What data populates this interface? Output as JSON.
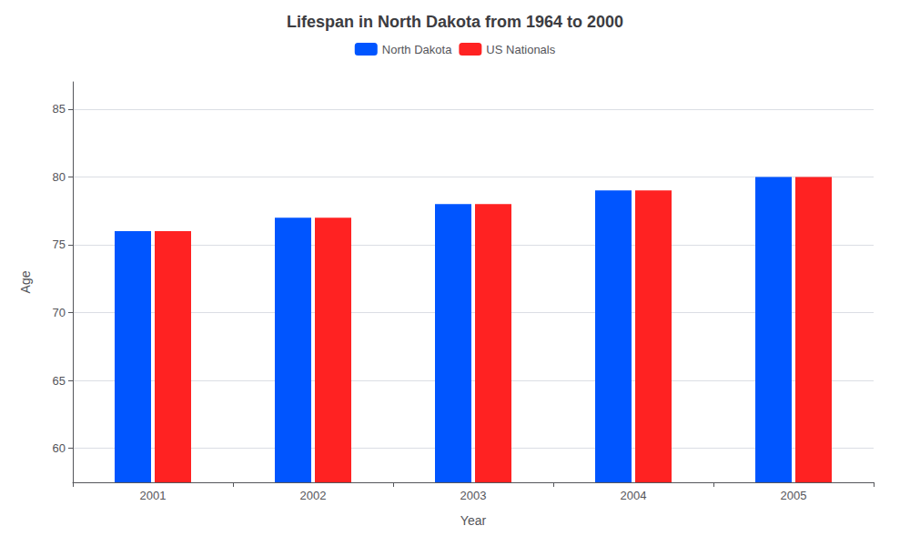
{
  "chart_data": {
    "type": "bar",
    "title": "Lifespan in North Dakota from 1964 to 2000",
    "xlabel": "Year",
    "ylabel": "Age",
    "categories": [
      "2001",
      "2002",
      "2003",
      "2004",
      "2005"
    ],
    "series": [
      {
        "name": "North Dakota",
        "color": "#0055ff",
        "values": [
          76,
          77,
          78,
          79,
          80
        ]
      },
      {
        "name": "US Nationals",
        "color": "#ff2222",
        "values": [
          76,
          77,
          78,
          79,
          80
        ]
      }
    ],
    "ylim": [
      57.5,
      87
    ],
    "yticks": [
      60,
      65,
      70,
      75,
      80,
      85
    ],
    "grid": true,
    "legend": "top"
  }
}
